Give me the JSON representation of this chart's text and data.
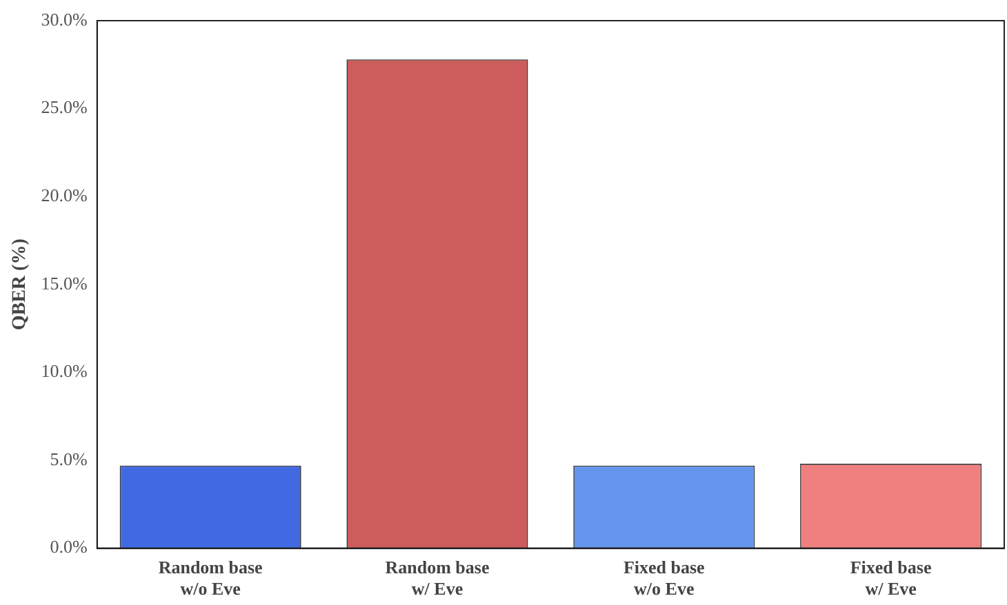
{
  "chart_data": {
    "type": "bar",
    "ylabel": "QBER (%)",
    "categories": [
      "Random base\nw/o Eve",
      "Random base\nw/ Eve",
      "Fixed base\nw/o Eve",
      "Fixed base\nw/ Eve"
    ],
    "values": [
      4.7,
      27.8,
      4.7,
      4.8
    ],
    "colors": [
      "#4169e1",
      "#cd5c5c",
      "#6495ed",
      "#f08080"
    ],
    "ylim": [
      0,
      30
    ],
    "yticks": [
      {
        "value": 0,
        "label": "0.0%"
      },
      {
        "value": 5,
        "label": "5.0%"
      },
      {
        "value": 10,
        "label": "10.0%"
      },
      {
        "value": 15,
        "label": "15.0%"
      },
      {
        "value": 20,
        "label": "20.0%"
      },
      {
        "value": 25,
        "label": "25.0%"
      },
      {
        "value": 30,
        "label": "30.0%"
      }
    ],
    "grid": false,
    "legend": false
  }
}
